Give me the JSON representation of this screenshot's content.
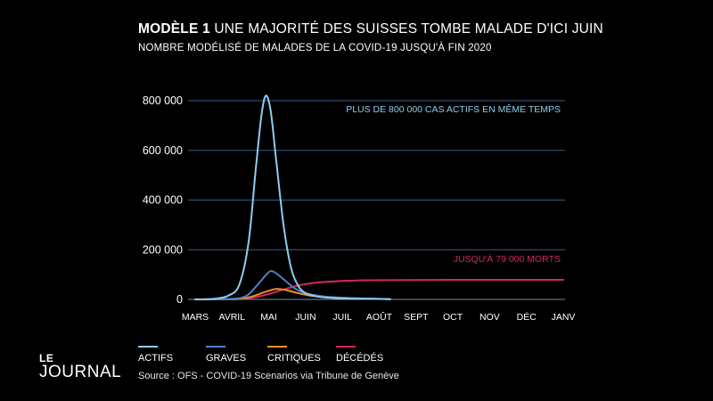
{
  "header": {
    "title_bold": "MODÈLE 1",
    "title_rest": "UNE MAJORITÉ DES SUISSES TOMBE MALADE D'ICI JUIN",
    "subtitle": "NOMBRE MODÉLISÉ DE MALADES DE LA COVID-19 JUSQU'À FIN 2020"
  },
  "chart_data": {
    "type": "line",
    "title": "UNE MAJORITÉ DES SUISSES TOMBE MALADE D'ICI JUIN",
    "subtitle": "NOMBRE MODÉLISÉ DE MALADES DE LA COVID-19 JUSQU'À FIN 2020",
    "xlabel": "",
    "ylabel": "",
    "categories": [
      "MARS",
      "AVRIL",
      "MAI",
      "JUIN",
      "JUIL",
      "AOÛT",
      "SEPT",
      "OCT",
      "NOV",
      "DÉC",
      "JANV"
    ],
    "y_ticks": [
      "800 000",
      "600 000",
      "400 000",
      "200 000",
      "0"
    ],
    "y_tick_values": [
      800000,
      600000,
      400000,
      200000,
      0
    ],
    "ylim": [
      0,
      800000
    ],
    "grid": true,
    "legend_position": "bottom-left",
    "series": [
      {
        "name": "ACTIFS",
        "color": "#8ecdf0",
        "points": [
          [
            0,
            0
          ],
          [
            0.5,
            2000
          ],
          [
            0.9,
            15000
          ],
          [
            1.2,
            60000
          ],
          [
            1.45,
            230000
          ],
          [
            1.65,
            530000
          ],
          [
            1.8,
            740000
          ],
          [
            1.92,
            820000
          ],
          [
            2.05,
            760000
          ],
          [
            2.2,
            560000
          ],
          [
            2.4,
            300000
          ],
          [
            2.6,
            130000
          ],
          [
            2.8,
            55000
          ],
          [
            3.0,
            25000
          ],
          [
            3.3,
            12000
          ],
          [
            3.7,
            6000
          ],
          [
            4.3,
            3000
          ],
          [
            5.0,
            2000
          ],
          [
            5.3,
            1000
          ]
        ]
      },
      {
        "name": "GRAVES",
        "color": "#4f7fc6",
        "points": [
          [
            0,
            0
          ],
          [
            1.0,
            2000
          ],
          [
            1.4,
            15000
          ],
          [
            1.7,
            60000
          ],
          [
            1.9,
            95000
          ],
          [
            2.05,
            114000
          ],
          [
            2.2,
            105000
          ],
          [
            2.45,
            75000
          ],
          [
            2.7,
            45000
          ],
          [
            3.0,
            25000
          ],
          [
            3.5,
            12000
          ],
          [
            4.2,
            5000
          ],
          [
            5.3,
            1000
          ]
        ]
      },
      {
        "name": "CRITIQUES",
        "color": "#e8902a",
        "points": [
          [
            0,
            0
          ],
          [
            1.1,
            1000
          ],
          [
            1.5,
            10000
          ],
          [
            1.9,
            30000
          ],
          [
            2.2,
            42000
          ],
          [
            2.45,
            38000
          ],
          [
            2.8,
            25000
          ],
          [
            3.2,
            14000
          ],
          [
            3.8,
            8000
          ],
          [
            4.5,
            4000
          ],
          [
            5.3,
            1000
          ]
        ]
      },
      {
        "name": "DÉCÉDÉS",
        "color": "#d4285a",
        "points": [
          [
            0,
            0
          ],
          [
            1.2,
            2000
          ],
          [
            1.6,
            8000
          ],
          [
            2.0,
            22000
          ],
          [
            2.4,
            40000
          ],
          [
            2.8,
            56000
          ],
          [
            3.2,
            66000
          ],
          [
            3.8,
            73000
          ],
          [
            4.6,
            77000
          ],
          [
            5.6,
            78000
          ],
          [
            7.0,
            79000
          ],
          [
            10,
            79000
          ]
        ]
      }
    ],
    "annotations": [
      {
        "text": "PLUS DE 800 000 CAS ACTIFS EN MÊME TEMPS",
        "color": "#8ecdf0"
      },
      {
        "text": "JUSQU'À 79 000 MORTS",
        "color": "#d4285a"
      }
    ]
  },
  "legend": [
    {
      "label": "ACTIFS",
      "color": "#8ecdf0"
    },
    {
      "label": "GRAVES",
      "color": "#4f7fc6"
    },
    {
      "label": "CRITIQUES",
      "color": "#e8902a"
    },
    {
      "label": "DÉCÉDÉS",
      "color": "#d4285a"
    }
  ],
  "source": "Source : OFS - COVID-19 Scenarios via Tribune de Genève",
  "logo": {
    "le": "LE",
    "journal": "JOURNAL"
  }
}
